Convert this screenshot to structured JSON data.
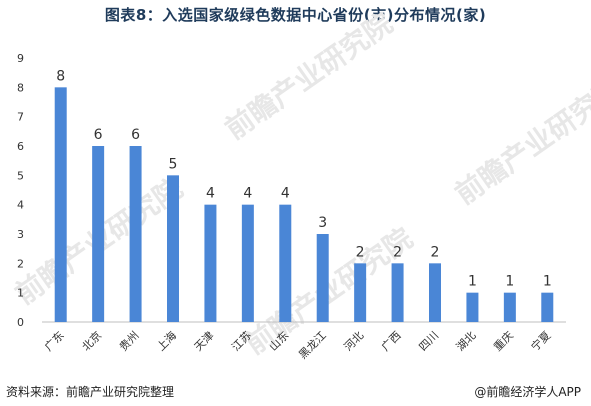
{
  "title": "图表8：入选国家级绿色数据中心省份(市)分布情况(家)",
  "footer": {
    "source": "资料来源：前瞻产业研究院整理",
    "brand": "@前瞻经济学人APP"
  },
  "watermark": "前瞻产业研究院",
  "colors": {
    "bar": "#4a86d6",
    "axis": "#bfbfbf",
    "text": "#333333"
  },
  "chart_data": {
    "type": "bar",
    "categories": [
      "广东",
      "北京",
      "贵州",
      "上海",
      "天津",
      "江苏",
      "山东",
      "黑龙江",
      "河北",
      "广西",
      "四川",
      "湖北",
      "重庆",
      "宁夏"
    ],
    "values": [
      8,
      6,
      6,
      5,
      4,
      4,
      4,
      3,
      2,
      2,
      2,
      1,
      1,
      1
    ],
    "ylim": [
      0,
      9
    ],
    "yticks": [
      0,
      1,
      2,
      3,
      4,
      5,
      6,
      7,
      8,
      9
    ],
    "grid": false,
    "data_labels": true,
    "title": "图表8：入选国家级绿色数据中心省份(市)分布情况(家)"
  }
}
